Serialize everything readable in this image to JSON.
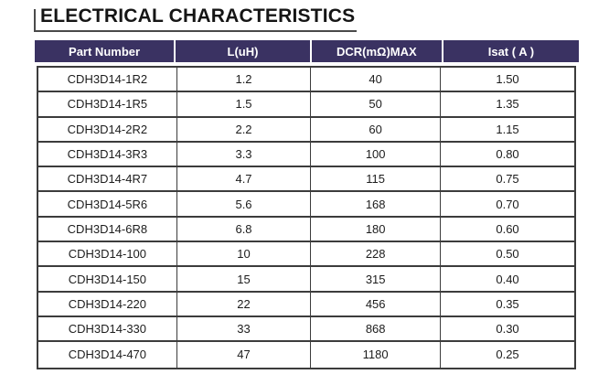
{
  "title": "ELECTRICAL CHARACTERISTICS",
  "colors": {
    "header_bg": "#3A3262",
    "header_text": "#FFFFFF",
    "border": "#3C3C3C",
    "title_text": "#151515"
  },
  "table": {
    "headers": [
      "Part Number",
      "L(uH)",
      "DCR(mΩ)MAX",
      "Isat ( A )"
    ],
    "rows": [
      [
        "CDH3D14-1R2",
        "1.2",
        "40",
        "1.50"
      ],
      [
        "CDH3D14-1R5",
        "1.5",
        "50",
        "1.35"
      ],
      [
        "CDH3D14-2R2",
        "2.2",
        "60",
        "1.15"
      ],
      [
        "CDH3D14-3R3",
        "3.3",
        "100",
        "0.80"
      ],
      [
        "CDH3D14-4R7",
        "4.7",
        "115",
        "0.75"
      ],
      [
        "CDH3D14-5R6",
        "5.6",
        "168",
        "0.70"
      ],
      [
        "CDH3D14-6R8",
        "6.8",
        "180",
        "0.60"
      ],
      [
        "CDH3D14-100",
        "10",
        "228",
        "0.50"
      ],
      [
        "CDH3D14-150",
        "15",
        "315",
        "0.40"
      ],
      [
        "CDH3D14-220",
        "22",
        "456",
        "0.35"
      ],
      [
        "CDH3D14-330",
        "33",
        "868",
        "0.30"
      ],
      [
        "CDH3D14-470",
        "47",
        "1180",
        "0.25"
      ]
    ]
  }
}
